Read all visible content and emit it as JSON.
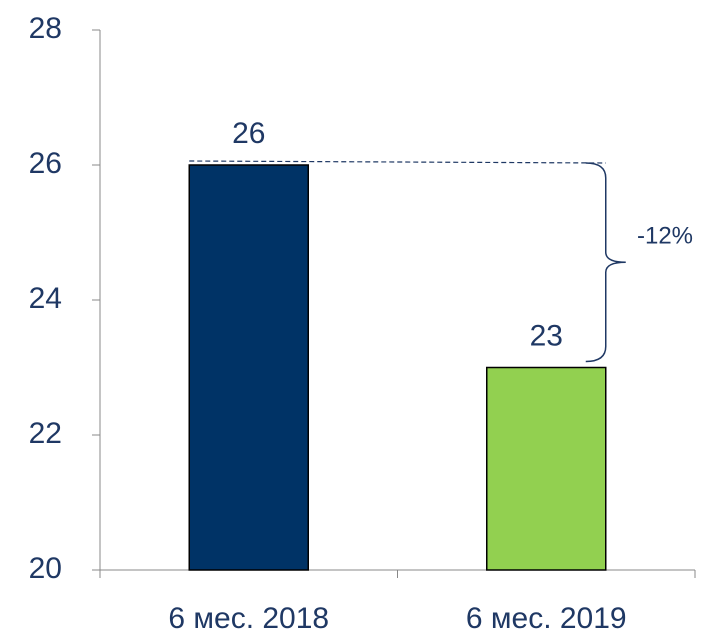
{
  "chart_data": {
    "type": "bar",
    "categories": [
      "6 мес. 2018",
      "6 мес. 2019"
    ],
    "values": [
      26,
      23
    ],
    "colors": [
      "#003366",
      "#92d050"
    ],
    "ylim": [
      20,
      28
    ],
    "yticks": [
      20,
      22,
      24,
      26,
      28
    ],
    "grid": false,
    "annotation": "-12%"
  }
}
